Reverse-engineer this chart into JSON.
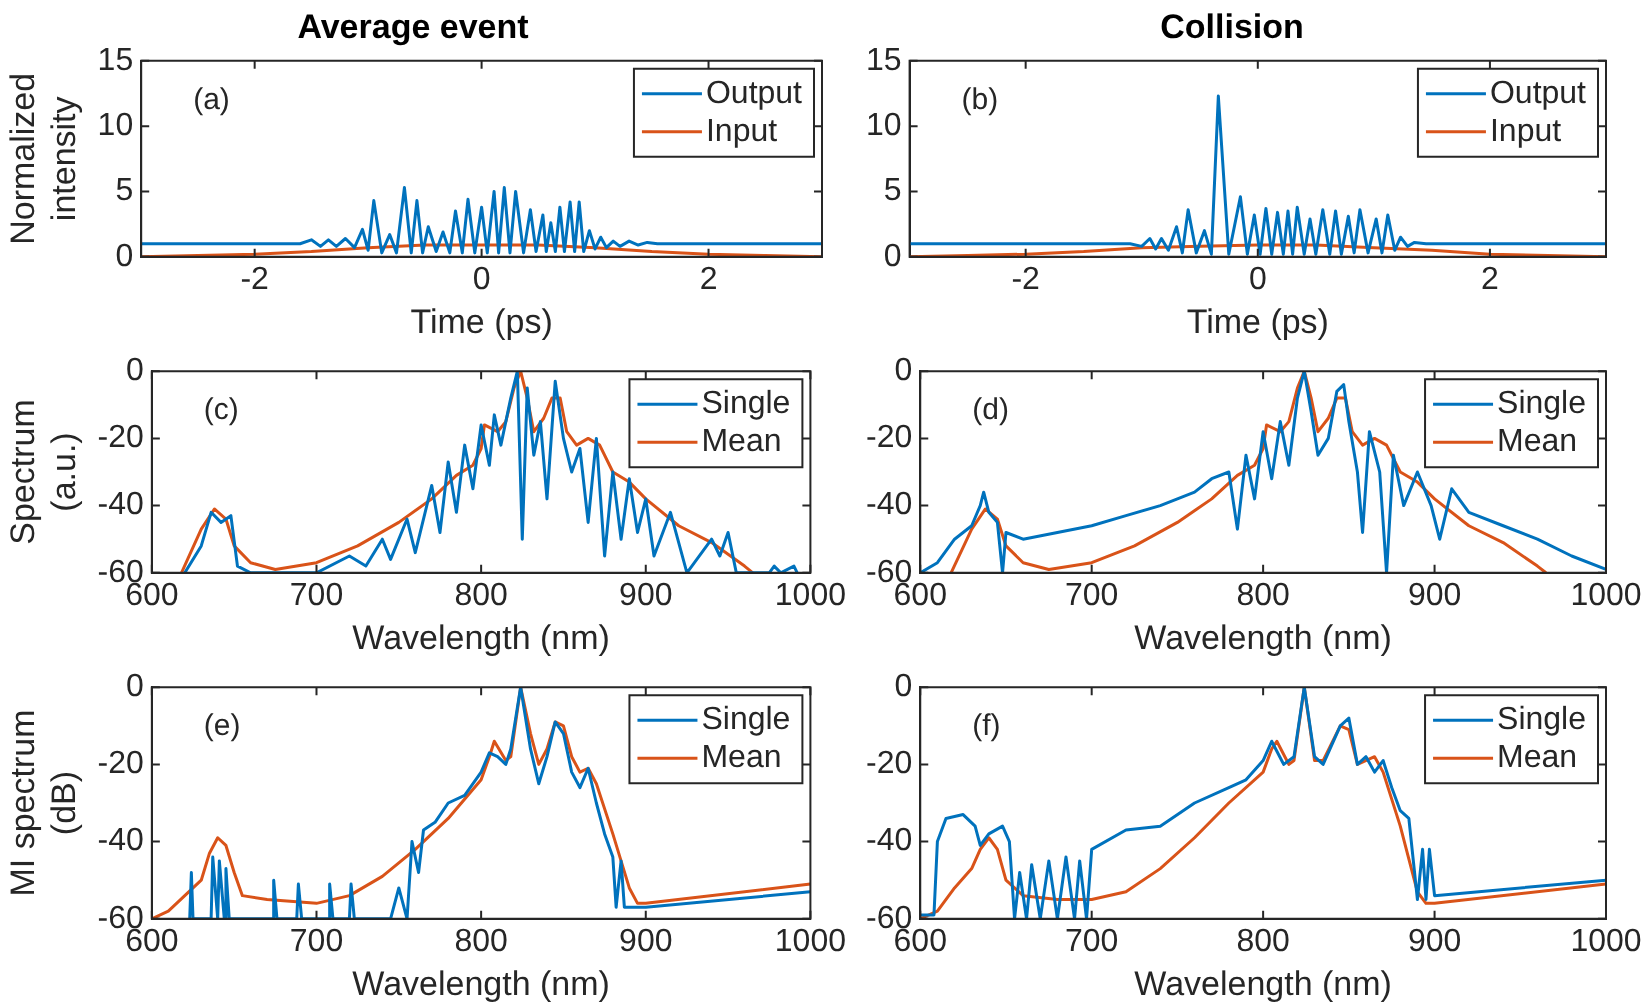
{
  "chart_data": [
    {
      "type": "line",
      "title": "Average event",
      "ylabel": "Normalized intensity",
      "xlabel": "Time (ps)",
      "xlim": [
        -3,
        3
      ],
      "xticks": [
        -2,
        0,
        2
      ],
      "ylim": [
        0,
        15
      ],
      "yticks": [
        0,
        5,
        10,
        15
      ],
      "legend": "top right",
      "annotations": [
        "(a)"
      ],
      "series": [
        {
          "name": "Output",
          "color": "#0072bd",
          "x": [
            -3,
            -1.6,
            -1.5,
            -1.42,
            -1.35,
            -1.28,
            -1.2,
            -1.12,
            -1.05,
            -1.0,
            -0.95,
            -0.88,
            -0.81,
            -0.75,
            -0.68,
            -0.62,
            -0.57,
            -0.52,
            -0.47,
            -0.4,
            -0.34,
            -0.28,
            -0.23,
            -0.17,
            -0.12,
            -0.06,
            0,
            0.05,
            0.11,
            0.15,
            0.2,
            0.25,
            0.3,
            0.37,
            0.43,
            0.48,
            0.54,
            0.57,
            0.61,
            0.65,
            0.69,
            0.73,
            0.78,
            0.82,
            0.86,
            0.9,
            0.95,
            1.0,
            1.05,
            1.1,
            1.16,
            1.22,
            1.3,
            1.38,
            1.46,
            1.55,
            1.65,
            3
          ],
          "values": [
            1,
            1,
            1.3,
            0.8,
            1.3,
            0.8,
            1.4,
            0.7,
            2.1,
            0.5,
            4.3,
            0.3,
            1.7,
            0.3,
            5.3,
            0.3,
            4.3,
            0.3,
            2.3,
            0.4,
            1.9,
            0.3,
            3.5,
            0.3,
            4.4,
            0.3,
            3.8,
            0.3,
            5.0,
            0.3,
            5.3,
            0.3,
            5.0,
            0.3,
            3.6,
            0.4,
            3.2,
            0.4,
            2.6,
            0.4,
            3.8,
            0.4,
            4.2,
            0.4,
            4.2,
            0.4,
            2.0,
            0.6,
            1.5,
            0.7,
            1.2,
            0.8,
            1.2,
            0.9,
            1.1,
            1,
            1,
            1
          ]
        },
        {
          "name": "Input",
          "color": "#d95319",
          "x": [
            -3,
            -2.5,
            -2,
            -1.5,
            -1,
            -0.5,
            0,
            0.5,
            1,
            1.5,
            2,
            2.5,
            3
          ],
          "values": [
            0,
            0.1,
            0.2,
            0.4,
            0.7,
            0.9,
            0.9,
            0.9,
            0.7,
            0.4,
            0.2,
            0.1,
            0
          ]
        }
      ]
    },
    {
      "type": "line",
      "title": "Collision",
      "xlabel": "Time (ps)",
      "xlim": [
        -3,
        3
      ],
      "xticks": [
        -2,
        0,
        2
      ],
      "ylim": [
        0,
        15
      ],
      "yticks": [
        0,
        5,
        10,
        15
      ],
      "legend": "top right",
      "annotations": [
        "(b)"
      ],
      "series": [
        {
          "name": "Output",
          "color": "#0072bd",
          "x": [
            -3,
            -1.1,
            -1.0,
            -0.93,
            -0.88,
            -0.83,
            -0.77,
            -0.7,
            -0.65,
            -0.6,
            -0.53,
            -0.46,
            -0.4,
            -0.34,
            -0.25,
            -0.15,
            -0.09,
            -0.03,
            0.02,
            0.07,
            0.12,
            0.17,
            0.22,
            0.26,
            0.3,
            0.34,
            0.4,
            0.45,
            0.5,
            0.56,
            0.62,
            0.67,
            0.72,
            0.78,
            0.83,
            0.88,
            0.95,
            1.02,
            1.07,
            1.12,
            1.18,
            1.23,
            1.29,
            1.35,
            1.45,
            3
          ],
          "values": [
            1,
            1,
            0.8,
            1.4,
            0.6,
            1.4,
            0.5,
            2.3,
            0.3,
            3.6,
            0.3,
            2.0,
            0.2,
            12.3,
            0.2,
            4.6,
            0.2,
            3.2,
            0.2,
            3.7,
            0.2,
            3.4,
            0.2,
            3.5,
            0.2,
            3.8,
            0.2,
            2.9,
            0.2,
            3.6,
            0.2,
            3.5,
            0.2,
            3.1,
            0.3,
            3.6,
            0.3,
            2.9,
            0.3,
            3.2,
            0.5,
            1.5,
            0.8,
            1.1,
            1,
            1
          ]
        },
        {
          "name": "Input",
          "color": "#d95319",
          "x": [
            -3,
            -2.5,
            -2,
            -1.5,
            -1,
            -0.5,
            0,
            0.5,
            1,
            1.5,
            2,
            2.5,
            3
          ],
          "values": [
            0,
            0.1,
            0.2,
            0.4,
            0.7,
            0.8,
            0.9,
            0.9,
            0.7,
            0.5,
            0.2,
            0.1,
            0
          ]
        }
      ]
    },
    {
      "type": "line",
      "ylabel": "Spectrum (a.u.)",
      "xlabel": "Wavelength (nm)",
      "xlim": [
        600,
        1000
      ],
      "xticks": [
        600,
        700,
        800,
        900,
        1000
      ],
      "ylim": [
        -60,
        0
      ],
      "yticks": [
        -60,
        -40,
        -20,
        0
      ],
      "legend": "top right",
      "annotations": [
        "(c)"
      ],
      "series": [
        {
          "name": "Single",
          "color": "#0072bd",
          "x": [
            620,
            630,
            636,
            642,
            648,
            652,
            660,
            700,
            720,
            730,
            740,
            745,
            755,
            760,
            770,
            775,
            780,
            785,
            790,
            795,
            800,
            805,
            808,
            812,
            818,
            822,
            825,
            828,
            832,
            836,
            840,
            845,
            850,
            855,
            860,
            865,
            870,
            875,
            880,
            885,
            890,
            895,
            900,
            905,
            915,
            925,
            940,
            945,
            950,
            955,
            975,
            978,
            982,
            990,
            992
          ],
          "values": [
            -60,
            -52,
            -42,
            -45,
            -43,
            -58,
            -60,
            -60,
            -55,
            -58,
            -50,
            -56,
            -44,
            -54,
            -34,
            -48,
            -27,
            -42,
            -22,
            -35,
            -16,
            -28,
            -13,
            -22,
            -8,
            0,
            -50,
            -5,
            -25,
            -15,
            -38,
            -3,
            -20,
            -30,
            -23,
            -45,
            -20,
            -55,
            -30,
            -50,
            -32,
            -48,
            -38,
            -55,
            -42,
            -60,
            -50,
            -55,
            -48,
            -60,
            -60,
            -58,
            -60,
            -58,
            -60
          ]
        },
        {
          "name": "Mean",
          "color": "#d95319",
          "x": [
            618,
            630,
            638,
            645,
            650,
            660,
            675,
            700,
            725,
            750,
            770,
            785,
            795,
            800,
            802,
            810,
            815,
            820,
            824,
            828,
            832,
            838,
            843,
            848,
            852,
            858,
            865,
            872,
            880,
            890,
            900,
            920,
            940,
            960,
            965
          ],
          "values": [
            -60,
            -47,
            -41,
            -44,
            -52,
            -57,
            -59,
            -57,
            -52,
            -45,
            -38,
            -31,
            -28,
            -23,
            -16,
            -18,
            -15,
            -5,
            0,
            -8,
            -18,
            -14,
            -8,
            -8,
            -18,
            -22,
            -20,
            -22,
            -30,
            -33,
            -38,
            -46,
            -51,
            -58,
            -60
          ]
        }
      ]
    },
    {
      "type": "line",
      "xlabel": "Wavelength (nm)",
      "xlim": [
        600,
        1000
      ],
      "xticks": [
        600,
        700,
        800,
        900,
        1000
      ],
      "ylim": [
        -60,
        0
      ],
      "yticks": [
        -60,
        -40,
        -20,
        0
      ],
      "legend": "top right",
      "annotations": [
        "(d)"
      ],
      "series": [
        {
          "name": "Single",
          "color": "#0072bd",
          "x": [
            600,
            610,
            620,
            630,
            635,
            637,
            640,
            645,
            648,
            650,
            660,
            680,
            700,
            720,
            740,
            760,
            770,
            780,
            785,
            790,
            795,
            800,
            805,
            810,
            815,
            820,
            824,
            828,
            832,
            838,
            843,
            847,
            850,
            855,
            858,
            862,
            868,
            872,
            876,
            882,
            890,
            898,
            903,
            910,
            920,
            940,
            960,
            980,
            1000
          ],
          "values": [
            -60,
            -57,
            -50,
            -46,
            -40,
            -36,
            -42,
            -45,
            -60,
            -48,
            -50,
            -48,
            -46,
            -43,
            -40,
            -36,
            -32,
            -30,
            -47,
            -25,
            -38,
            -18,
            -32,
            -15,
            -28,
            -8,
            0,
            -12,
            -25,
            -20,
            -6,
            -4,
            -15,
            -30,
            -48,
            -18,
            -30,
            -60,
            -25,
            -40,
            -30,
            -40,
            -50,
            -35,
            -42,
            -46,
            -50,
            -55,
            -59
          ]
        },
        {
          "name": "Mean",
          "color": "#d95319",
          "x": [
            618,
            630,
            638,
            645,
            650,
            660,
            675,
            700,
            725,
            750,
            770,
            785,
            795,
            800,
            802,
            810,
            815,
            820,
            824,
            828,
            832,
            838,
            843,
            848,
            852,
            858,
            865,
            872,
            880,
            890,
            900,
            920,
            940,
            960,
            965
          ],
          "values": [
            -60,
            -47,
            -41,
            -44,
            -52,
            -57,
            -59,
            -57,
            -52,
            -45,
            -38,
            -31,
            -28,
            -23,
            -16,
            -18,
            -15,
            -5,
            0,
            -8,
            -18,
            -14,
            -8,
            -8,
            -18,
            -22,
            -20,
            -22,
            -30,
            -33,
            -38,
            -46,
            -51,
            -58,
            -60
          ]
        }
      ]
    },
    {
      "type": "line",
      "ylabel": "MI spectrum (dB)",
      "xlabel": "Wavelength (nm)",
      "xlim": [
        600,
        1000
      ],
      "xticks": [
        600,
        700,
        800,
        900,
        1000
      ],
      "ylim": [
        -60,
        0
      ],
      "yticks": [
        -60,
        -40,
        -20,
        0
      ],
      "legend": "top right",
      "annotations": [
        "(e)"
      ],
      "series": [
        {
          "name": "Single",
          "color": "#0072bd",
          "x": [
            623,
            624,
            625,
            636,
            637,
            640,
            641,
            644,
            645,
            647,
            673,
            674,
            676,
            688,
            689,
            691,
            707,
            708,
            710,
            720,
            721,
            723,
            745,
            750,
            755,
            758,
            762,
            765,
            772,
            780,
            790,
            800,
            805,
            810,
            815,
            818,
            824,
            830,
            835,
            840,
            845,
            850,
            855,
            860,
            865,
            870,
            875,
            880,
            882,
            885,
            887,
            900,
            1000
          ],
          "values": [
            -60,
            -48,
            -60,
            -60,
            -44,
            -60,
            -45,
            -60,
            -47,
            -60,
            -60,
            -50,
            -60,
            -60,
            -51,
            -60,
            -60,
            -51,
            -60,
            -60,
            -51,
            -60,
            -60,
            -52,
            -60,
            -40,
            -48,
            -37,
            -35,
            -30,
            -28,
            -22,
            -17,
            -18,
            -20,
            -16,
            0,
            -16,
            -25,
            -18,
            -9,
            -12,
            -22,
            -26,
            -21,
            -30,
            -38,
            -44,
            -57,
            -45,
            -57,
            -57,
            -53
          ]
        },
        {
          "name": "Mean",
          "color": "#d95319",
          "x": [
            600,
            610,
            620,
            630,
            635,
            640,
            645,
            650,
            655,
            670,
            700,
            720,
            740,
            760,
            780,
            800,
            805,
            808,
            815,
            818,
            824,
            830,
            835,
            840,
            845,
            850,
            855,
            860,
            865,
            870,
            880,
            890,
            895,
            900,
            1000
          ],
          "values": [
            -60,
            -58,
            -54,
            -50,
            -43,
            -39,
            -41,
            -48,
            -54,
            -55,
            -56,
            -54,
            -49,
            -42,
            -34,
            -24,
            -18,
            -14,
            -19,
            -18,
            0,
            -12,
            -20,
            -16,
            -9,
            -10,
            -18,
            -22,
            -21,
            -25,
            -38,
            -52,
            -56,
            -56,
            -51
          ]
        }
      ]
    },
    {
      "type": "line",
      "xlabel": "Wavelength (nm)",
      "xlim": [
        600,
        1000
      ],
      "xticks": [
        600,
        700,
        800,
        900,
        1000
      ],
      "ylim": [
        -60,
        0
      ],
      "yticks": [
        -60,
        -40,
        -20,
        0
      ],
      "legend": "top right",
      "annotations": [
        "(f)"
      ],
      "series": [
        {
          "name": "Single",
          "color": "#0072bd",
          "x": [
            600,
            608,
            610,
            615,
            625,
            632,
            635,
            640,
            648,
            652,
            655,
            658,
            662,
            665,
            670,
            675,
            680,
            685,
            690,
            693,
            697,
            700,
            720,
            740,
            760,
            780,
            790,
            800,
            805,
            812,
            818,
            824,
            830,
            835,
            845,
            850,
            855,
            860,
            865,
            870,
            875,
            880,
            885,
            890,
            893,
            895,
            897,
            900,
            1000
          ],
          "values": [
            -59,
            -59,
            -40,
            -34,
            -33,
            -36,
            -41,
            -38,
            -36,
            -40,
            -60,
            -48,
            -60,
            -46,
            -60,
            -45,
            -60,
            -44,
            -60,
            -45,
            -60,
            -42,
            -37,
            -36,
            -30,
            -26,
            -24,
            -19,
            -14,
            -20,
            -18,
            0,
            -18,
            -20,
            -10,
            -8,
            -20,
            -18,
            -22,
            -19,
            -26,
            -32,
            -34,
            -55,
            -42,
            -55,
            -42,
            -54,
            -50
          ]
        },
        {
          "name": "Mean",
          "color": "#d95319",
          "x": [
            600,
            610,
            620,
            630,
            635,
            640,
            645,
            650,
            660,
            680,
            700,
            720,
            740,
            760,
            780,
            800,
            805,
            808,
            815,
            818,
            824,
            830,
            835,
            845,
            850,
            855,
            865,
            870,
            880,
            890,
            895,
            900,
            1000
          ],
          "values": [
            -60,
            -58,
            -52,
            -47,
            -42,
            -39,
            -42,
            -50,
            -54,
            -55,
            -55,
            -53,
            -47,
            -39,
            -30,
            -22,
            -16,
            -14,
            -20,
            -19,
            0,
            -19,
            -19,
            -10,
            -11,
            -20,
            -18,
            -22,
            -36,
            -53,
            -56,
            -56,
            -51
          ]
        }
      ]
    }
  ]
}
